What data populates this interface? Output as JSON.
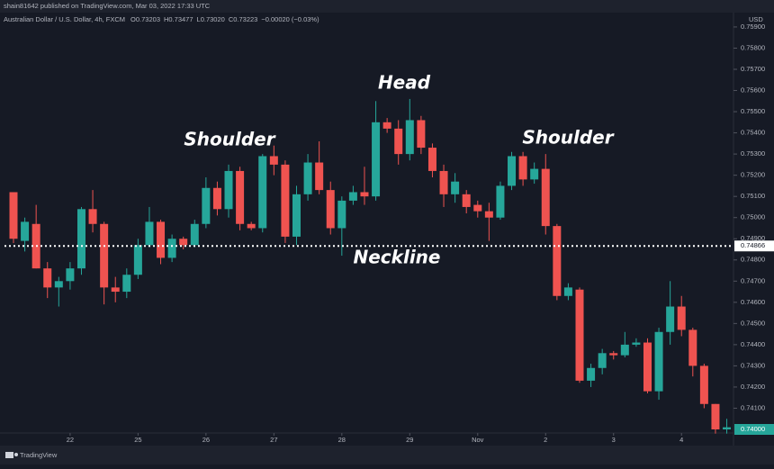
{
  "header": "shain81642 published on TradingView.com, Mar 03, 2022 17:33 UTC",
  "footer": "TradingView",
  "chart_data": {
    "type": "candlestick",
    "title": "Australian Dollar / U.S. Dollar, 4h, FXCM",
    "ohlc_legend": [
      "O0.73203",
      "H0.73477",
      "L0.73020",
      "C0.73223",
      "−0.00020 (−0.03%)"
    ],
    "currency": "USD",
    "up_color": "#26a69a",
    "down_color": "#ef5350",
    "grid": false,
    "categories": [
      null,
      null,
      null,
      null,
      null,
      "22",
      null,
      null,
      null,
      null,
      null,
      "25",
      null,
      null,
      null,
      null,
      null,
      "26",
      null,
      null,
      null,
      null,
      null,
      "27",
      null,
      null,
      null,
      null,
      null,
      "28",
      null,
      null,
      null,
      null,
      null,
      "29",
      null,
      null,
      null,
      null,
      null,
      "Nov",
      null,
      null,
      null,
      null,
      null,
      "2",
      null,
      null,
      null,
      null,
      null,
      "3",
      null,
      null,
      null,
      null,
      null,
      "4",
      null,
      null,
      null,
      null
    ],
    "open": [
      0.7512,
      0.7489,
      0.7497,
      0.7476,
      0.7467,
      0.747,
      0.7476,
      0.7504,
      0.7497,
      0.7467,
      0.7465,
      0.7473,
      0.7487,
      0.7498,
      0.7481,
      0.749,
      0.7487,
      0.7497,
      0.7514,
      0.7504,
      0.7522,
      0.7497,
      0.7495,
      0.7529,
      0.7525,
      0.7491,
      0.7511,
      0.7526,
      0.7513,
      0.7495,
      0.7508,
      0.7512,
      0.751,
      0.7545,
      0.7542,
      0.753,
      0.7546,
      0.7533,
      0.7522,
      0.7511,
      0.7511,
      0.7506,
      0.7503,
      0.75,
      0.7515,
      0.7529,
      0.7518,
      0.7523,
      0.7496,
      0.7463,
      0.7466,
      0.7423,
      0.7429,
      0.7436,
      0.7435,
      0.744,
      0.7441,
      0.7418,
      0.7446,
      0.7458,
      0.7447,
      0.743,
      0.7412,
      0.74
    ],
    "high": [
      0.7512,
      0.75,
      0.7506,
      0.7479,
      0.7472,
      0.7479,
      0.7505,
      0.7513,
      0.7498,
      0.7472,
      0.7476,
      0.749,
      0.7505,
      0.7499,
      0.7492,
      0.7491,
      0.7499,
      0.7519,
      0.7517,
      0.7525,
      0.7524,
      0.7498,
      0.753,
      0.7534,
      0.7527,
      0.7515,
      0.753,
      0.7536,
      0.7517,
      0.751,
      0.7515,
      0.7524,
      0.7555,
      0.7547,
      0.7546,
      0.7556,
      0.7548,
      0.7535,
      0.7525,
      0.7521,
      0.7513,
      0.7508,
      0.7507,
      0.7517,
      0.7531,
      0.7531,
      0.7526,
      0.753,
      0.7497,
      0.7469,
      0.7467,
      0.7431,
      0.7438,
      0.7437,
      0.7446,
      0.7443,
      0.7443,
      0.7448,
      0.747,
      0.7463,
      0.7448,
      0.7431,
      0.7412,
      0.7405
    ],
    "low": [
      0.7488,
      0.7484,
      0.7476,
      0.7462,
      0.7458,
      0.7466,
      0.7473,
      0.7493,
      0.7459,
      0.746,
      0.7462,
      0.7471,
      0.7486,
      0.7478,
      0.7479,
      0.7485,
      0.7486,
      0.7495,
      0.7501,
      0.75,
      0.7494,
      0.7494,
      0.7493,
      0.752,
      0.7488,
      0.7487,
      0.7508,
      0.7511,
      0.7492,
      0.7482,
      0.7506,
      0.7506,
      0.7508,
      0.754,
      0.7525,
      0.7527,
      0.753,
      0.7519,
      0.7505,
      0.7507,
      0.7502,
      0.75,
      0.7489,
      0.7499,
      0.7513,
      0.7515,
      0.7516,
      0.7492,
      0.7461,
      0.7461,
      0.7422,
      0.742,
      0.7426,
      0.7433,
      0.7434,
      0.7439,
      0.7417,
      0.7414,
      0.744,
      0.7444,
      0.7425,
      0.741,
      0.7398,
      0.7398
    ],
    "close": [
      0.749,
      0.7498,
      0.7476,
      0.7467,
      0.747,
      0.7476,
      0.7504,
      0.7497,
      0.7467,
      0.7465,
      0.7473,
      0.7487,
      0.7498,
      0.7481,
      0.749,
      0.7487,
      0.7497,
      0.7514,
      0.7504,
      0.7522,
      0.7497,
      0.7495,
      0.7529,
      0.7525,
      0.7491,
      0.7511,
      0.7526,
      0.7513,
      0.7495,
      0.7508,
      0.7512,
      0.751,
      0.7545,
      0.7542,
      0.753,
      0.7546,
      0.7533,
      0.7522,
      0.7511,
      0.7517,
      0.7505,
      0.7503,
      0.75,
      0.7515,
      0.7529,
      0.7518,
      0.7523,
      0.7496,
      0.7463,
      0.7467,
      0.7423,
      0.7429,
      0.7436,
      0.7435,
      0.744,
      0.7441,
      0.7418,
      0.7446,
      0.7458,
      0.7447,
      0.743,
      0.7412,
      0.74,
      0.7401
    ],
    "ylim": [
      0.73983,
      0.75955
    ],
    "yticks": [
      {
        "value": 0.741,
        "label": "0.74100"
      },
      {
        "value": 0.742,
        "label": "0.74200"
      },
      {
        "value": 0.743,
        "label": "0.74300"
      },
      {
        "value": 0.744,
        "label": "0.74400"
      },
      {
        "value": 0.745,
        "label": "0.74500"
      },
      {
        "value": 0.746,
        "label": "0.74600"
      },
      {
        "value": 0.747,
        "label": "0.74700"
      },
      {
        "value": 0.748,
        "label": "0.74800"
      },
      {
        "value": 0.749,
        "label": "0.74900"
      },
      {
        "value": 0.75,
        "label": "0.75000"
      },
      {
        "value": 0.751,
        "label": "0.75100"
      },
      {
        "value": 0.752,
        "label": "0.75200"
      },
      {
        "value": 0.753,
        "label": "0.75300"
      },
      {
        "value": 0.754,
        "label": "0.75400"
      },
      {
        "value": 0.755,
        "label": "0.75500"
      },
      {
        "value": 0.756,
        "label": "0.75600"
      },
      {
        "value": 0.757,
        "label": "0.75700"
      },
      {
        "value": 0.758,
        "label": "0.75800"
      },
      {
        "value": 0.759,
        "label": "0.75900"
      }
    ],
    "neckline": {
      "value": 0.74866,
      "label": "0.74866",
      "text": "Neckline"
    },
    "last_price": {
      "value": 0.74,
      "label": "0.74000"
    },
    "annotations": [
      "Shoulder",
      "Head",
      "Shoulder"
    ]
  }
}
